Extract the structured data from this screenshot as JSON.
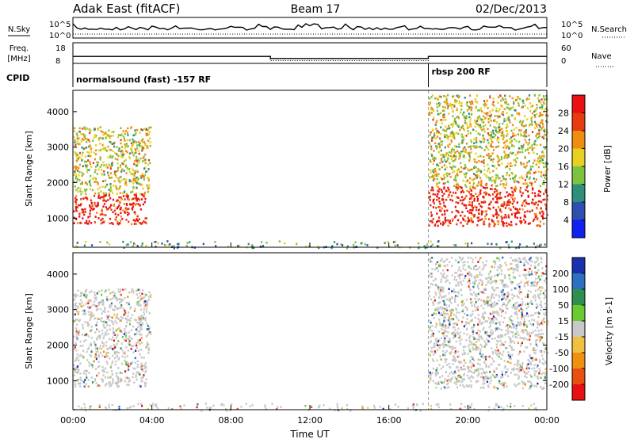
{
  "header": {
    "station": "Adak East (fitACF)",
    "beam": "Beam 17",
    "date": "02/Dec/2013"
  },
  "chart_data": [
    {
      "type": "line",
      "panel": "noise",
      "left_label": "N.Sky",
      "right_label": "N.Search",
      "left_ticks": [
        "10^5",
        "10^0"
      ],
      "right_ticks": [
        "10^5",
        "10^0"
      ],
      "series": [
        {
          "name": "N.Sky",
          "style": "solid"
        },
        {
          "name": "N.Search",
          "style": "dotted"
        }
      ]
    },
    {
      "type": "line",
      "panel": "frequency",
      "left_label_lines": [
        "Freq.",
        "[MHz]"
      ],
      "right_label": "Nave",
      "left_ticks": [
        18,
        8
      ],
      "right_ticks": [
        60,
        0
      ],
      "freq_series": {
        "x_hours": [
          0,
          10.0,
          10.0,
          18.0,
          18.0,
          24
        ],
        "values": [
          11.4,
          11.4,
          10.4,
          10.4,
          11.4,
          11.4
        ],
        "ylim": [
          8,
          18
        ]
      },
      "nave_series": {
        "x_hours": [
          0,
          10.0,
          10.0,
          18.0,
          18.0,
          24
        ],
        "values": [
          20,
          20,
          8,
          8,
          20,
          20
        ],
        "ylim": [
          0,
          60
        ]
      }
    },
    {
      "type": "line",
      "panel": "cpid",
      "label": "CPID",
      "segments": [
        {
          "start_hour": 0,
          "text": "normalsound (fast) -157 RF"
        },
        {
          "start_hour": 18.0,
          "text": "rbsp 200 RF"
        }
      ]
    },
    {
      "type": "heatmap",
      "panel": "power",
      "ylabel": "Slant Range [km]",
      "yticks": [
        1000,
        2000,
        3000,
        4000
      ],
      "ylim": [
        180,
        4600
      ],
      "colorbar_label": "Power [dB]",
      "colorbar_ticks": [
        4,
        8,
        12,
        16,
        20,
        24,
        28
      ],
      "colorbar_range": [
        0,
        32
      ],
      "colorbar_colors": [
        "#1020f0",
        "#2c4fb0",
        "#2f8f7a",
        "#7cc440",
        "#e8d020",
        "#f08c10",
        "#e83a10",
        "#e81010"
      ],
      "echo_regions": [
        {
          "t": [
            0.0,
            3.7
          ],
          "r": [
            850,
            1700
          ],
          "level": 0.92
        },
        {
          "t": [
            0.0,
            3.9
          ],
          "r": [
            1700,
            3600
          ],
          "level": 0.55
        },
        {
          "t": [
            18.0,
            24.0
          ],
          "r": [
            800,
            1900
          ],
          "level": 0.9
        },
        {
          "t": [
            18.0,
            24.0
          ],
          "r": [
            1900,
            4500
          ],
          "level": 0.55
        },
        {
          "t": [
            0.0,
            24.0
          ],
          "r": [
            180,
            380
          ],
          "level": 0.35
        }
      ]
    },
    {
      "type": "heatmap",
      "panel": "velocity",
      "ylabel": "Slant Range [km]",
      "yticks": [
        1000,
        2000,
        3000,
        4000
      ],
      "ylim": [
        180,
        4600
      ],
      "colorbar_label": "Velocity [m s-1]",
      "colorbar_ticks": [
        "200",
        "100",
        "50",
        "15",
        "-15",
        "-50",
        "-100",
        "-200"
      ],
      "colorbar_colors": [
        "#1c2fb0",
        "#2c70c0",
        "#2f8f4f",
        "#6acb30",
        "#c8c8c8",
        "#f0c040",
        "#f09010",
        "#e85010",
        "#e81010"
      ],
      "echo_regions": [
        {
          "t": [
            0.0,
            3.7
          ],
          "r": [
            850,
            1700
          ],
          "level": 0.5
        },
        {
          "t": [
            0.0,
            3.9
          ],
          "r": [
            1700,
            3600
          ],
          "level": 0.5
        },
        {
          "t": [
            18.0,
            24.0
          ],
          "r": [
            800,
            1900
          ],
          "level": 0.5
        },
        {
          "t": [
            18.0,
            24.0
          ],
          "r": [
            1900,
            4500
          ],
          "level": 0.5
        },
        {
          "t": [
            0.0,
            24.0
          ],
          "r": [
            180,
            380
          ],
          "level": 0.75
        }
      ]
    }
  ],
  "time_axis": {
    "label": "Time UT",
    "ticks": [
      "00:00",
      "04:00",
      "08:00",
      "12:00",
      "16:00",
      "20:00",
      "00:00"
    ],
    "range_hours": [
      0,
      24
    ]
  }
}
